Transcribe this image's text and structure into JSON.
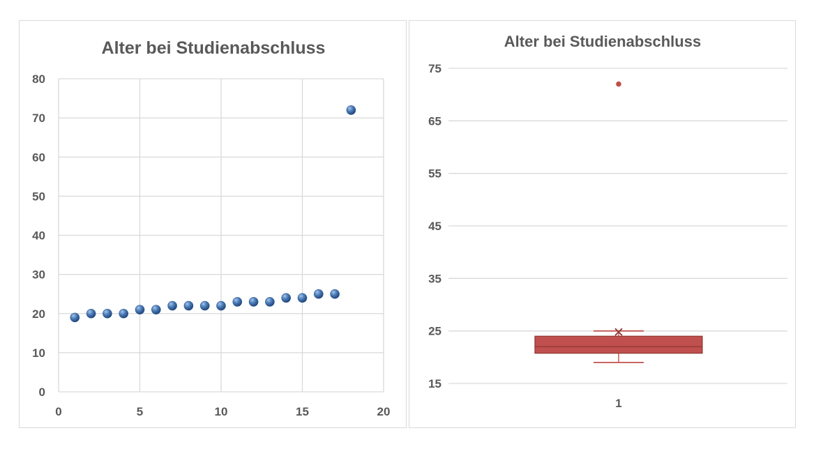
{
  "chart_data": [
    {
      "type": "scatter",
      "title": "Alter bei Studienabschluss",
      "xlabel": "",
      "ylabel": "",
      "xlim": [
        0,
        20
      ],
      "ylim": [
        0,
        80
      ],
      "x_ticks": [
        "0",
        "5",
        "10",
        "15",
        "20"
      ],
      "y_ticks": [
        "0",
        "10",
        "20",
        "30",
        "40",
        "50",
        "60",
        "70",
        "80"
      ],
      "grid": true,
      "marker_color": "#4f81bd",
      "points": [
        {
          "x": 1,
          "y": 19
        },
        {
          "x": 2,
          "y": 20
        },
        {
          "x": 3,
          "y": 20
        },
        {
          "x": 4,
          "y": 20
        },
        {
          "x": 5,
          "y": 21
        },
        {
          "x": 6,
          "y": 21
        },
        {
          "x": 7,
          "y": 22
        },
        {
          "x": 8,
          "y": 22
        },
        {
          "x": 9,
          "y": 22
        },
        {
          "x": 10,
          "y": 22
        },
        {
          "x": 11,
          "y": 23
        },
        {
          "x": 12,
          "y": 23
        },
        {
          "x": 13,
          "y": 23
        },
        {
          "x": 14,
          "y": 24
        },
        {
          "x": 15,
          "y": 24
        },
        {
          "x": 16,
          "y": 25
        },
        {
          "x": 17,
          "y": 25
        },
        {
          "x": 18,
          "y": 72
        }
      ]
    },
    {
      "type": "box",
      "title": "Alter bei Studienabschluss",
      "xlabel": "",
      "ylabel": "",
      "ylim": [
        15,
        75
      ],
      "y_ticks": [
        "15",
        "25",
        "35",
        "45",
        "55",
        "65",
        "75"
      ],
      "categories": [
        "1"
      ],
      "grid": true,
      "box_color": "#c0504d",
      "box": {
        "min": 19,
        "q1": 20.75,
        "median": 22,
        "q3": 24,
        "max": 25,
        "mean": 24.8,
        "outliers": [
          72
        ]
      }
    }
  ]
}
